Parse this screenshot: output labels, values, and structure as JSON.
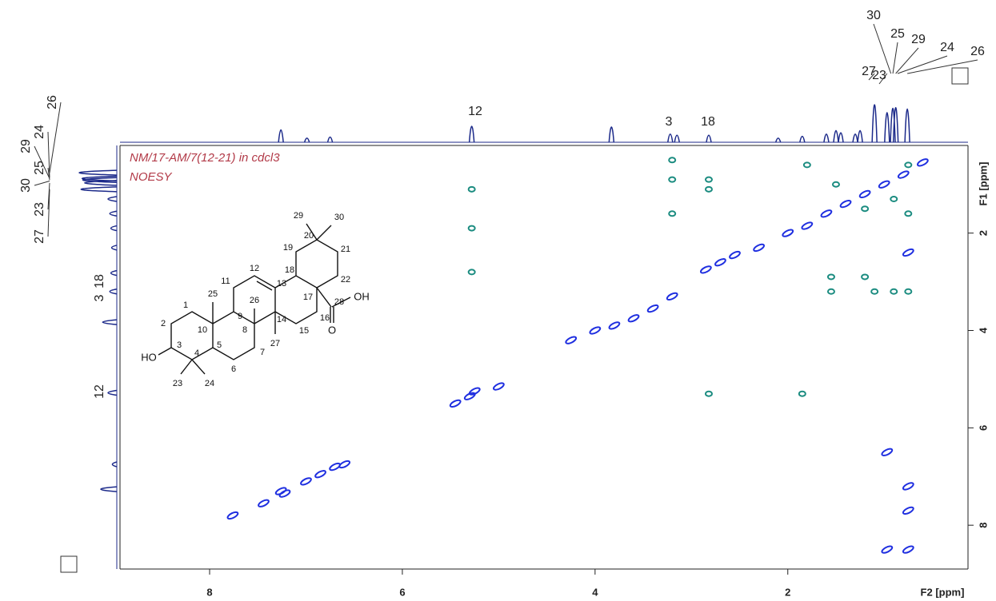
{
  "chart_data": {
    "type": "noesy",
    "annotations": [
      "NM/17-AM/7(12-21) in cdcl3",
      "NOESY"
    ],
    "xlabel": "F2 [ppm]",
    "ylabel": "F1 [ppm]",
    "xlim": [
      8.93,
      0.13
    ],
    "ylim": [
      0.2,
      8.9
    ],
    "xticks": [
      8,
      6,
      4,
      2
    ],
    "yticks": [
      2,
      4,
      6,
      8
    ],
    "diagonal": {
      "color": "#1f2fe0",
      "x": [
        7.76,
        7.44,
        7.26,
        7.22,
        7.0,
        6.85,
        6.7,
        6.6,
        5.45,
        5.3,
        5.25,
        5.0,
        4.25,
        4.0,
        3.8,
        3.6,
        3.4,
        3.2,
        2.85,
        2.7,
        2.55,
        2.3,
        2.0,
        1.8,
        1.6,
        1.4,
        1.2,
        1.0,
        0.8,
        0.6,
        0.75,
        0.75,
        0.75,
        0.97,
        0.97,
        0.75
      ],
      "y": [
        7.8,
        7.55,
        7.3,
        7.35,
        7.1,
        6.95,
        6.8,
        6.75,
        5.5,
        5.35,
        5.25,
        5.15,
        4.2,
        4.0,
        3.9,
        3.75,
        3.55,
        3.3,
        2.75,
        2.6,
        2.45,
        2.3,
        2.0,
        1.85,
        1.6,
        1.4,
        1.2,
        1.0,
        0.8,
        0.55,
        7.2,
        7.7,
        8.5,
        8.5,
        6.5,
        2.4
      ]
    },
    "cross": {
      "color": "#1b8c80",
      "x": [
        5.28,
        5.28,
        5.28,
        3.2,
        3.2,
        3.2,
        2.82,
        2.82,
        2.82,
        1.85,
        1.55,
        1.55,
        1.2,
        1.1,
        0.9,
        0.75,
        0.75,
        1.5,
        1.8,
        1.2,
        0.9,
        0.75
      ],
      "y": [
        1.1,
        1.9,
        2.8,
        0.5,
        0.9,
        1.6,
        0.9,
        1.1,
        5.3,
        5.3,
        2.9,
        3.2,
        2.9,
        3.2,
        3.2,
        3.2,
        0.6,
        1.0,
        0.6,
        1.5,
        1.3,
        1.6
      ]
    },
    "projection_f2": {
      "color": "#1c2a8a",
      "x": [
        7.26,
        6.99,
        6.75,
        5.28,
        3.83,
        3.22,
        3.15,
        2.82,
        2.1,
        1.85,
        1.6,
        1.5,
        1.45,
        1.3,
        1.25,
        1.1,
        0.97,
        0.91,
        0.88,
        0.76
      ],
      "values": [
        0.3,
        0.07,
        0.1,
        0.4,
        0.38,
        0.18,
        0.15,
        0.15,
        0.07,
        0.12,
        0.18,
        0.28,
        0.22,
        0.18,
        0.28,
        1.0,
        0.78,
        0.9,
        0.92,
        0.88
      ],
      "peak_labels": [
        {
          "label": "12",
          "x": 5.28
        },
        {
          "label": "3",
          "x": 3.2
        },
        {
          "label": "18",
          "x": 2.82
        },
        {
          "label": "27",
          "x": 1.1
        },
        {
          "label": "23",
          "x": 0.97
        },
        {
          "label": "30",
          "x": 0.93
        },
        {
          "label": "25",
          "x": 0.91
        },
        {
          "label": "29",
          "x": 0.88
        },
        {
          "label": "24",
          "x": 0.86
        },
        {
          "label": "26",
          "x": 0.76
        }
      ]
    },
    "projection_f1": {
      "color": "#1c2a8a",
      "y": [
        0.76,
        0.88,
        0.91,
        0.97,
        1.1,
        1.3,
        1.6,
        1.9,
        2.3,
        2.82,
        3.2,
        3.83,
        5.28,
        6.75,
        7.26
      ],
      "values": [
        1.0,
        0.92,
        0.9,
        0.85,
        0.95,
        0.2,
        0.15,
        0.12,
        0.1,
        0.12,
        0.15,
        0.35,
        0.2,
        0.08,
        0.4
      ],
      "peak_labels": [
        {
          "label": "26",
          "y": 0.76
        },
        {
          "label": "24",
          "y": 0.86
        },
        {
          "label": "29",
          "y": 0.88
        },
        {
          "label": "25",
          "y": 0.91
        },
        {
          "label": "30",
          "y": 0.93
        },
        {
          "label": "23",
          "y": 0.97
        },
        {
          "label": "27",
          "y": 1.1
        },
        {
          "label": "18",
          "y": 2.82
        },
        {
          "label": "3",
          "y": 3.2
        },
        {
          "label": "12",
          "y": 5.28
        }
      ]
    },
    "structure_labels": [
      "1",
      "2",
      "3",
      "4",
      "5",
      "6",
      "7",
      "8",
      "9",
      "10",
      "11",
      "12",
      "13",
      "14",
      "15",
      "16",
      "17",
      "18",
      "19",
      "20",
      "21",
      "22",
      "23",
      "24",
      "25",
      "26",
      "27",
      "28",
      "29",
      "30",
      "HO",
      "OH",
      "O"
    ]
  }
}
